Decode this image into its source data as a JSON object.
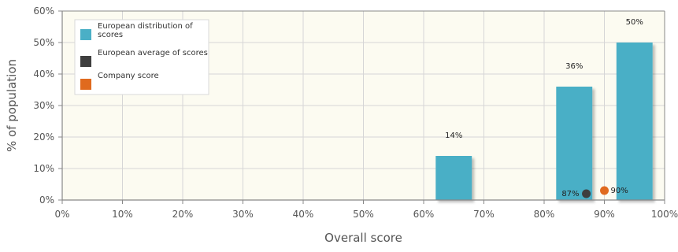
{
  "colors": {
    "bar": "#4aafc6",
    "average": "#3e3e3e",
    "company": "#e06a1e",
    "plot_bg": "#fcfbf1",
    "grid": "#d6d6d6",
    "axis": "#888888"
  },
  "legend": {
    "items": [
      {
        "label_lines": [
          "European distribution of",
          "scores"
        ],
        "color": "#4aafc6"
      },
      {
        "label_lines": [
          "European average of scores"
        ],
        "color": "#3e3e3e"
      },
      {
        "label_lines": [
          "Company score"
        ],
        "color": "#e06a1e"
      }
    ]
  },
  "chart_data": {
    "type": "bar",
    "title": "",
    "xlabel": "Overall score",
    "ylabel": "% of population",
    "xlim": [
      0,
      100
    ],
    "ylim": [
      0,
      60
    ],
    "x_ticks": [
      "0%",
      "10%",
      "20%",
      "30%",
      "40%",
      "50%",
      "60%",
      "70%",
      "80%",
      "90%",
      "100%"
    ],
    "y_ticks": [
      "0%",
      "10%",
      "20%",
      "30%",
      "40%",
      "50%",
      "60%"
    ],
    "grid": true,
    "legend_position": "top-left",
    "bars": [
      {
        "x_start": 62,
        "x_end": 68,
        "value": 14,
        "label": "14%"
      },
      {
        "x_start": 82,
        "x_end": 88,
        "value": 36,
        "label": "36%"
      },
      {
        "x_start": 92,
        "x_end": 98,
        "value": 50,
        "label": "50%"
      }
    ],
    "points": [
      {
        "series": "European average of scores",
        "x": 87,
        "y": 2,
        "label": "87%",
        "label_side": "left"
      },
      {
        "series": "Company score",
        "x": 90,
        "y": 3,
        "label": "90%",
        "label_side": "right"
      }
    ]
  }
}
